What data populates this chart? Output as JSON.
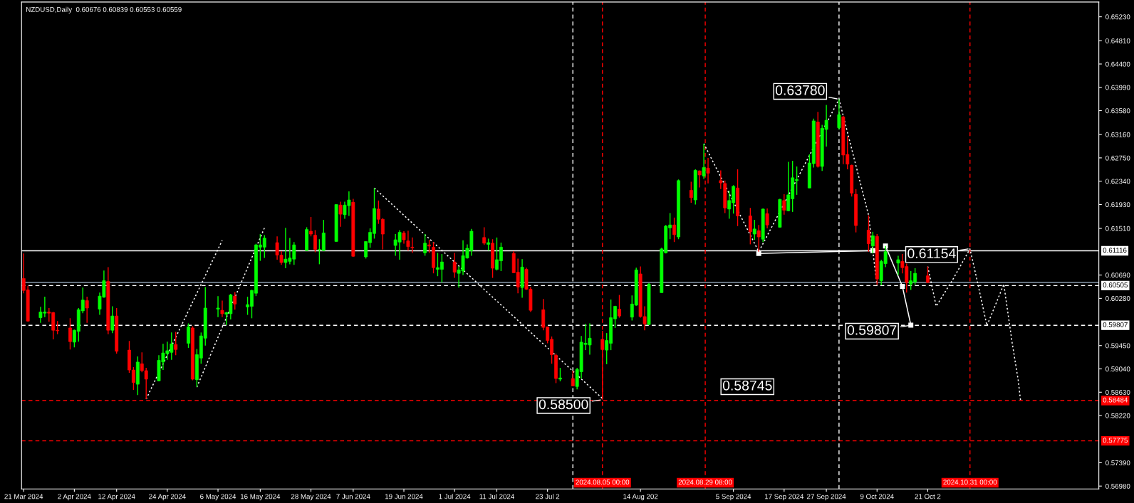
{
  "chart_data": {
    "type": "candlestick",
    "title": "NZDUSD,Daily  0.60676 0.60839 0.60553 0.60559",
    "x": [
      "2024-03-21",
      "2024-03-22",
      "2024-03-25",
      "2024-03-26",
      "2024-03-27",
      "2024-03-28",
      "2024-03-29",
      "2024-04-01",
      "2024-04-02",
      "2024-04-03",
      "2024-04-04",
      "2024-04-05",
      "2024-04-08",
      "2024-04-09",
      "2024-04-10",
      "2024-04-11",
      "2024-04-12",
      "2024-04-15",
      "2024-04-16",
      "2024-04-17",
      "2024-04-18",
      "2024-04-19",
      "2024-04-22",
      "2024-04-23",
      "2024-04-24",
      "2024-04-25",
      "2024-04-26",
      "2024-04-29",
      "2024-04-30",
      "2024-05-01",
      "2024-05-02",
      "2024-05-03",
      "2024-05-06",
      "2024-05-07",
      "2024-05-08",
      "2024-05-09",
      "2024-05-10",
      "2024-05-13",
      "2024-05-14",
      "2024-05-15",
      "2024-05-16",
      "2024-05-17",
      "2024-05-20",
      "2024-05-21",
      "2024-05-22",
      "2024-05-23",
      "2024-05-24",
      "2024-05-27",
      "2024-05-28",
      "2024-05-29",
      "2024-05-30",
      "2024-05-31",
      "2024-06-03",
      "2024-06-04",
      "2024-06-05",
      "2024-06-06",
      "2024-06-07",
      "2024-06-10",
      "2024-06-11",
      "2024-06-12",
      "2024-06-13",
      "2024-06-14",
      "2024-06-17",
      "2024-06-18",
      "2024-06-19",
      "2024-06-20",
      "2024-06-21",
      "2024-06-24",
      "2024-06-25",
      "2024-06-26",
      "2024-06-27",
      "2024-06-28",
      "2024-07-01",
      "2024-07-02",
      "2024-07-03",
      "2024-07-04",
      "2024-07-05",
      "2024-07-08",
      "2024-07-09",
      "2024-07-10",
      "2024-07-11",
      "2024-07-12",
      "2024-07-15",
      "2024-07-16",
      "2024-07-17",
      "2024-07-18",
      "2024-07-19",
      "2024-07-22",
      "2024-07-23",
      "2024-07-24",
      "2024-07-25",
      "2024-07-26",
      "2024-07-29",
      "2024-07-30",
      "2024-07-31",
      "2024-08-01",
      "2024-08-02",
      "2024-08-05",
      "2024-08-06",
      "2024-08-07",
      "2024-08-08",
      "2024-08-09",
      "2024-08-12",
      "2024-08-13",
      "2024-08-14",
      "2024-08-15",
      "2024-08-16",
      "2024-08-19",
      "2024-08-20",
      "2024-08-21",
      "2024-08-22",
      "2024-08-23",
      "2024-08-26",
      "2024-08-27",
      "2024-08-28",
      "2024-08-29",
      "2024-08-30",
      "2024-09-02",
      "2024-09-03",
      "2024-09-04",
      "2024-09-05",
      "2024-09-06",
      "2024-09-09",
      "2024-09-10",
      "2024-09-11",
      "2024-09-12",
      "2024-09-13",
      "2024-09-16",
      "2024-09-17",
      "2024-09-18",
      "2024-09-19",
      "2024-09-20",
      "2024-09-23",
      "2024-09-24",
      "2024-09-25",
      "2024-09-26",
      "2024-09-27",
      "2024-09-30",
      "2024-10-01",
      "2024-10-02",
      "2024-10-03",
      "2024-10-04",
      "2024-10-07",
      "2024-10-08",
      "2024-10-09",
      "2024-10-10",
      "2024-10-11",
      "2024-10-14",
      "2024-10-15",
      "2024-10-16",
      "2024-10-17",
      "2024-10-18",
      "2024-10-21"
    ],
    "ohlc": [
      [
        0.6063,
        0.6107,
        0.6037,
        0.6042
      ],
      [
        0.6043,
        0.605,
        0.5987,
        0.5988
      ],
      [
        0.5994,
        0.6013,
        0.5985,
        0.6004
      ],
      [
        0.6002,
        0.6031,
        0.5995,
        0.6004
      ],
      [
        0.6004,
        0.6011,
        0.5987,
        0.6002
      ],
      [
        0.6003,
        0.6004,
        0.5956,
        0.5972
      ],
      [
        0.5972,
        0.5988,
        0.5965,
        0.5971
      ],
      [
        0.5976,
        0.5993,
        0.5938,
        0.5952
      ],
      [
        0.5951,
        0.5973,
        0.5942,
        0.5972
      ],
      [
        0.597,
        0.6011,
        0.5952,
        0.6008
      ],
      [
        0.6006,
        0.6047,
        0.6002,
        0.6025
      ],
      [
        0.6024,
        0.6031,
        0.5985,
        0.6011
      ],
      [
        0.6009,
        0.6038,
        0.5999,
        0.6032
      ],
      [
        0.603,
        0.6077,
        0.6029,
        0.6059
      ],
      [
        0.6058,
        0.6083,
        0.5965,
        0.5972
      ],
      [
        0.5972,
        0.6014,
        0.5967,
        0.5997
      ],
      [
        0.5997,
        0.6011,
        0.5931,
        0.5935
      ],
      [
        0.5937,
        0.5953,
        0.5897,
        0.5902
      ],
      [
        0.5902,
        0.5907,
        0.5867,
        0.588
      ],
      [
        0.5877,
        0.5926,
        0.5858,
        0.5916
      ],
      [
        0.5913,
        0.5933,
        0.5898,
        0.5901
      ],
      [
        0.5901,
        0.5906,
        0.5851,
        0.5886
      ],
      [
        0.5883,
        0.5928,
        0.5882,
        0.5919
      ],
      [
        0.5916,
        0.5948,
        0.5902,
        0.5932
      ],
      [
        0.5931,
        0.5952,
        0.592,
        0.5936
      ],
      [
        0.5933,
        0.5968,
        0.592,
        0.5948
      ],
      [
        0.5947,
        0.5969,
        0.5928,
        0.5938
      ],
      [
        0.5949,
        0.5984,
        0.5941,
        0.5978
      ],
      [
        0.5976,
        0.5979,
        0.5884,
        0.5886
      ],
      [
        0.5885,
        0.5939,
        0.5872,
        0.5929
      ],
      [
        0.5923,
        0.5968,
        0.5913,
        0.5962
      ],
      [
        0.5958,
        0.6048,
        0.5945,
        0.6011
      ],
      [
        0.6009,
        0.6032,
        0.5995,
        0.6011
      ],
      [
        0.6007,
        0.6024,
        0.5995,
        0.6001
      ],
      [
        0.6,
        0.6004,
        0.5981,
        0.6003
      ],
      [
        0.6001,
        0.6036,
        0.5991,
        0.6034
      ],
      [
        0.6032,
        0.6039,
        0.6008,
        0.6018
      ],
      [
        0.6013,
        0.6031,
        0.5999,
        0.6017
      ],
      [
        0.6014,
        0.6043,
        0.5993,
        0.6042
      ],
      [
        0.6037,
        0.6124,
        0.6032,
        0.6122
      ],
      [
        0.6118,
        0.6141,
        0.6094,
        0.6122
      ],
      [
        0.6118,
        0.6139,
        0.6099,
        0.6134
      ],
      [
        0.6126,
        0.6137,
        0.6096,
        0.6104
      ],
      [
        0.6104,
        0.6111,
        0.6087,
        0.6091
      ],
      [
        0.6091,
        0.6152,
        0.6081,
        0.6097
      ],
      [
        0.6093,
        0.6134,
        0.6088,
        0.6099
      ],
      [
        0.6097,
        0.6127,
        0.6087,
        0.6122
      ],
      [
        0.6112,
        0.6153,
        0.6112,
        0.6149
      ],
      [
        0.6146,
        0.6171,
        0.6137,
        0.6141
      ],
      [
        0.6139,
        0.6148,
        0.6109,
        0.6114
      ],
      [
        0.6113,
        0.6132,
        0.6088,
        0.6114
      ],
      [
        0.6112,
        0.6166,
        0.6112,
        0.6143
      ],
      [
        0.6128,
        0.6193,
        0.6128,
        0.6193
      ],
      [
        0.6192,
        0.6198,
        0.6154,
        0.6176
      ],
      [
        0.6175,
        0.6198,
        0.6168,
        0.6192
      ],
      [
        0.6191,
        0.6216,
        0.6173,
        0.6201
      ],
      [
        0.6197,
        0.6203,
        0.6101,
        0.6102
      ],
      [
        0.6101,
        0.6128,
        0.6098,
        0.6128
      ],
      [
        0.6126,
        0.6151,
        0.6117,
        0.6144
      ],
      [
        0.6142,
        0.6222,
        0.6133,
        0.6186
      ],
      [
        0.6185,
        0.62,
        0.6159,
        0.6167
      ],
      [
        0.6167,
        0.6169,
        0.6114,
        0.6141
      ],
      [
        0.6121,
        0.6141,
        0.6103,
        0.6131
      ],
      [
        0.6127,
        0.6148,
        0.6096,
        0.6144
      ],
      [
        0.6143,
        0.6146,
        0.6124,
        0.6131
      ],
      [
        0.6129,
        0.6147,
        0.6112,
        0.6119
      ],
      [
        0.6118,
        0.6135,
        0.6108,
        0.6117
      ],
      [
        0.6108,
        0.6141,
        0.6103,
        0.6125
      ],
      [
        0.6122,
        0.6131,
        0.6108,
        0.612
      ],
      [
        0.6118,
        0.6127,
        0.6072,
        0.6082
      ],
      [
        0.6079,
        0.6108,
        0.6067,
        0.6082
      ],
      [
        0.6079,
        0.6106,
        0.6056,
        0.6092
      ],
      [
        0.6092,
        0.6108,
        0.6064,
        0.6074
      ],
      [
        0.6072,
        0.6084,
        0.6047,
        0.6078
      ],
      [
        0.6076,
        0.613,
        0.6069,
        0.6103
      ],
      [
        0.6099,
        0.6123,
        0.6098,
        0.6116
      ],
      [
        0.6112,
        0.615,
        0.6103,
        0.6146
      ],
      [
        0.6135,
        0.6153,
        0.6122,
        0.6125
      ],
      [
        0.6123,
        0.6133,
        0.6112,
        0.6126
      ],
      [
        0.6125,
        0.6132,
        0.6064,
        0.6081
      ],
      [
        0.6079,
        0.6135,
        0.6077,
        0.6096
      ],
      [
        0.6094,
        0.6126,
        0.6076,
        0.6118
      ],
      [
        0.6107,
        0.6111,
        0.6073,
        0.6073
      ],
      [
        0.6074,
        0.6098,
        0.6037,
        0.6048
      ],
      [
        0.6047,
        0.6097,
        0.6029,
        0.6083
      ],
      [
        0.6079,
        0.6082,
        0.6043,
        0.6044
      ],
      [
        0.6044,
        0.6048,
        0.6004,
        0.6007
      ],
      [
        0.6008,
        0.6027,
        0.5972,
        0.5977
      ],
      [
        0.5978,
        0.5978,
        0.5949,
        0.5954
      ],
      [
        0.5956,
        0.5961,
        0.5913,
        0.5929
      ],
      [
        0.5928,
        0.5931,
        0.5879,
        0.5887
      ],
      [
        0.5886,
        0.5906,
        0.5882,
        0.5888
      ],
      [
        0.5887,
        0.5901,
        0.5874,
        0.5874
      ],
      [
        0.5873,
        0.5906,
        0.5868,
        0.5903
      ],
      [
        0.5899,
        0.5962,
        0.5887,
        0.5951
      ],
      [
        0.5947,
        0.5983,
        0.5937,
        0.5949
      ],
      [
        0.5946,
        0.5984,
        0.5929,
        0.5958
      ],
      [
        0.5956,
        0.5971,
        0.585,
        0.5938
      ],
      [
        0.5937,
        0.5967,
        0.5912,
        0.5954
      ],
      [
        0.5949,
        0.6026,
        0.5937,
        0.5994
      ],
      [
        0.5992,
        0.6015,
        0.5976,
        0.6014
      ],
      [
        0.6009,
        0.6034,
        0.5994,
        0.5997
      ],
      [
        0.5995,
        0.6033,
        0.5989,
        0.6018
      ],
      [
        0.6016,
        0.6082,
        0.6015,
        0.6078
      ],
      [
        0.6071,
        0.6084,
        0.5994,
        0.5996
      ],
      [
        0.5996,
        0.6014,
        0.5972,
        0.5983
      ],
      [
        0.5982,
        0.6055,
        0.5981,
        0.6053
      ],
      [
        0.6038,
        0.6117,
        0.6038,
        0.6115
      ],
      [
        0.6108,
        0.6157,
        0.6107,
        0.6155
      ],
      [
        0.6152,
        0.6178,
        0.6132,
        0.6157
      ],
      [
        0.6157,
        0.617,
        0.6127,
        0.614
      ],
      [
        0.6136,
        0.6237,
        0.6132,
        0.6235
      ],
      [
        0.6218,
        0.6233,
        0.6196,
        0.6205
      ],
      [
        0.6201,
        0.6255,
        0.6193,
        0.6253
      ],
      [
        0.6252,
        0.6253,
        0.6223,
        0.6245
      ],
      [
        0.6243,
        0.63,
        0.6238,
        0.6258
      ],
      [
        0.6257,
        0.6275,
        0.623,
        0.6248
      ],
      [
        0.6235,
        0.6253,
        0.622,
        0.6231
      ],
      [
        0.623,
        0.6235,
        0.6178,
        0.6187
      ],
      [
        0.6185,
        0.6217,
        0.6168,
        0.62
      ],
      [
        0.6196,
        0.6227,
        0.6177,
        0.6225
      ],
      [
        0.6222,
        0.6255,
        0.6155,
        0.6173
      ],
      [
        0.6173,
        0.6187,
        0.6123,
        0.6145
      ],
      [
        0.6141,
        0.6166,
        0.6131,
        0.615
      ],
      [
        0.6147,
        0.6157,
        0.611,
        0.6136
      ],
      [
        0.6132,
        0.6186,
        0.6127,
        0.6185
      ],
      [
        0.6177,
        0.6186,
        0.6151,
        0.6157
      ],
      [
        0.6153,
        0.6203,
        0.6153,
        0.6202
      ],
      [
        0.62,
        0.6211,
        0.6175,
        0.6183
      ],
      [
        0.6182,
        0.6268,
        0.6181,
        0.621
      ],
      [
        0.6203,
        0.627,
        0.618,
        0.624
      ],
      [
        0.6235,
        0.626,
        0.621,
        0.6237
      ],
      [
        0.6222,
        0.6281,
        0.6222,
        0.6266
      ],
      [
        0.6265,
        0.6344,
        0.6258,
        0.634
      ],
      [
        0.6338,
        0.6356,
        0.6258,
        0.626
      ],
      [
        0.626,
        0.6333,
        0.6252,
        0.6327
      ],
      [
        0.6325,
        0.6368,
        0.6295,
        0.6341
      ],
      [
        0.6328,
        0.6378,
        0.6325,
        0.6351
      ],
      [
        0.6347,
        0.6349,
        0.6264,
        0.628
      ],
      [
        0.6281,
        0.6313,
        0.6255,
        0.6264
      ],
      [
        0.6262,
        0.6263,
        0.6207,
        0.6213
      ],
      [
        0.6211,
        0.622,
        0.6144,
        0.6156
      ],
      [
        0.6148,
        0.6174,
        0.611,
        0.6124
      ],
      [
        0.612,
        0.6145,
        0.6107,
        0.6138
      ],
      [
        0.6137,
        0.6141,
        0.6052,
        0.6062
      ],
      [
        0.6059,
        0.6096,
        0.6051,
        0.6093
      ],
      [
        0.6089,
        0.612,
        0.6083,
        0.611
      ],
      [
        0.609,
        0.6103,
        0.6069,
        0.6096
      ],
      [
        0.6093,
        0.6106,
        0.6072,
        0.6082
      ],
      [
        0.6084,
        0.6089,
        0.6038,
        0.6056
      ],
      [
        0.6053,
        0.6076,
        0.6043,
        0.6059
      ],
      [
        0.6057,
        0.6081,
        0.6052,
        0.6072
      ],
      [
        0.60676,
        0.60839,
        0.60553,
        0.60559
      ]
    ],
    "colors": [
      "#ff0000",
      "#ff0000",
      "#00ff00",
      "#00ff00",
      "#ff0000",
      "#ff0000",
      "#ff0000",
      "#ff0000",
      "#00ff00",
      "#00ff00",
      "#00ff00",
      "#ff0000",
      "#00ff00",
      "#00ff00",
      "#ff0000",
      "#00ff00",
      "#ff0000",
      "#ff0000",
      "#ff0000",
      "#00ff00",
      "#ff0000",
      "#ff0000",
      "#00ff00",
      "#00ff00",
      "#00ff00",
      "#00ff00",
      "#ff0000",
      "#00ff00",
      "#ff0000",
      "#00ff00",
      "#00ff00",
      "#00ff00",
      "#00ff00",
      "#ff0000",
      "#00ff00",
      "#00ff00",
      "#ff0000",
      "#00ff00",
      "#00ff00",
      "#00ff00",
      "#00ff00",
      "#00ff00",
      "#ff0000",
      "#ff0000",
      "#00ff00",
      "#00ff00",
      "#00ff00",
      "#00ff00",
      "#ff0000",
      "#ff0000",
      "#00ff00",
      "#00ff00",
      "#00ff00",
      "#ff0000",
      "#00ff00",
      "#00ff00",
      "#ff0000",
      "#00ff00",
      "#00ff00",
      "#00ff00",
      "#ff0000",
      "#ff0000",
      "#00ff00",
      "#00ff00",
      "#ff0000",
      "#ff0000",
      "#ff0000",
      "#00ff00",
      "#ff0000",
      "#ff0000",
      "#00ff00",
      "#00ff00",
      "#ff0000",
      "#00ff00",
      "#00ff00",
      "#00ff00",
      "#00ff00",
      "#ff0000",
      "#00ff00",
      "#ff0000",
      "#00ff00",
      "#00ff00",
      "#ff0000",
      "#ff0000",
      "#00ff00",
      "#ff0000",
      "#ff0000",
      "#ff0000",
      "#ff0000",
      "#ff0000",
      "#ff0000",
      "#00ff00",
      "#ff0000",
      "#00ff00",
      "#00ff00",
      "#00ff00",
      "#00ff00",
      "#ff0000",
      "#00ff00",
      "#00ff00",
      "#00ff00",
      "#ff0000",
      "#00ff00",
      "#00ff00",
      "#ff0000",
      "#ff0000",
      "#00ff00",
      "#00ff00",
      "#00ff00",
      "#00ff00",
      "#ff0000",
      "#00ff00",
      "#ff0000",
      "#00ff00",
      "#ff0000",
      "#00ff00",
      "#ff0000",
      "#ff0000",
      "#ff0000",
      "#00ff00",
      "#00ff00",
      "#ff0000",
      "#ff0000",
      "#00ff00",
      "#ff0000",
      "#00ff00",
      "#ff0000",
      "#00ff00",
      "#ff0000",
      "#00ff00",
      "#00ff00",
      "#00ff00",
      "#00ff00",
      "#00ff00",
      "#ff0000",
      "#00ff00",
      "#00ff00",
      "#00ff00",
      "#ff0000",
      "#ff0000",
      "#ff0000",
      "#ff0000",
      "#ff0000",
      "#00ff00",
      "#ff0000",
      "#00ff00",
      "#00ff00",
      "#00ff00",
      "#ff0000",
      "#ff0000",
      "#00ff00",
      "#00ff00",
      "#ff0000"
    ],
    "series": [
      {
        "type": "line",
        "color": "#ffffff",
        "line_style": "dotted",
        "marker": "none",
        "x": [
          "2024-04-19",
          "2024-05-07"
        ],
        "values": [
          0.5851,
          0.613
        ]
      },
      {
        "type": "line",
        "color": "#ffffff",
        "line_style": "dotted",
        "marker": "none",
        "x": [
          "2024-05-01",
          "2024-05-17"
        ],
        "values": [
          0.5872,
          0.6152
        ]
      },
      {
        "type": "line",
        "color": "#ffffff",
        "line_style": "dotted",
        "marker": "none",
        "x": [
          "2024-06-12",
          "2024-08-05"
        ],
        "values": [
          0.6222,
          0.5852
        ]
      },
      {
        "type": "line",
        "color": "#ffffff",
        "line_style": "dotted",
        "marker": "none",
        "x": [
          "2024-08-29",
          "2024-09-11",
          "2024-09-30",
          "2024-10-07",
          "2024-10-08",
          "2024-10-09"
        ],
        "values": [
          0.63,
          0.611,
          0.6378,
          0.6174,
          0.6111,
          0.605
        ]
      },
      {
        "type": "line",
        "color": "#ffffff",
        "line_style": "solid",
        "marker": "square",
        "x": [
          "2024-09-11",
          "2024-10-08"
        ],
        "values": [
          0.6107,
          0.6112
        ]
      },
      {
        "type": "line",
        "color": "#ffffff",
        "line_style": "solid",
        "marker": "square",
        "x": [
          "2024-10-11",
          "2024-10-15",
          "2024-10-17"
        ],
        "values": [
          0.612,
          0.6049,
          0.5981
        ]
      },
      {
        "type": "line",
        "color": "#ffffff",
        "line_style": "dotted",
        "marker": "none",
        "x": [
          "2024-10-21",
          "2024-10-22",
          "2024-10-23",
          "2024-10-27",
          "2024-10-31",
          "2024-11-02",
          "2024-11-04",
          "2024-11-06",
          "2024-11-08",
          "2024-11-10",
          "2024-11-11T10:00",
          "2024-11-12"
        ],
        "values": [
          0.6084,
          0.6049,
          0.6014,
          0.6062,
          0.6115,
          0.6049,
          0.598,
          0.6016,
          0.6053,
          0.5949,
          0.5884,
          0.5846
        ]
      }
    ],
    "ref_lines": [
      {
        "axis": "y",
        "value": 0.61116,
        "label": "0.61116",
        "color": "#ffffff",
        "line_style": "solid"
      },
      {
        "axis": "y",
        "value": 0.60559,
        "label": null,
        "color": "#8899aa",
        "line_style": "solid"
      },
      {
        "axis": "y",
        "value": 0.60505,
        "label": "0.60505",
        "color": "#ffffff",
        "line_style": "dashed"
      },
      {
        "axis": "y",
        "value": 0.59807,
        "label": "0.59807",
        "color": "#ffffff",
        "line_style": "dashed"
      },
      {
        "axis": "y",
        "value": 0.58484,
        "label": "0.58484",
        "color": "#ff0000",
        "line_style": "dashed"
      },
      {
        "axis": "y",
        "value": 0.57775,
        "label": "0.57775",
        "color": "#ff0000",
        "line_style": "dashed"
      },
      {
        "axis": "x",
        "value": "2024-07-29",
        "label": null,
        "color": "#ffffff",
        "line_style": "dashed"
      },
      {
        "axis": "x",
        "value": "2024-08-05T00:00",
        "label": "2024.08.05 00:00",
        "color": "#ff0000",
        "line_style": "dashed"
      },
      {
        "axis": "x",
        "value": "2024-08-29T08:00",
        "label": "2024.08.29 08:00",
        "color": "#ff0000",
        "line_style": "dashed"
      },
      {
        "axis": "x",
        "value": "2024-09-30",
        "label": null,
        "color": "#ffffff",
        "line_style": "dashed"
      },
      {
        "axis": "x",
        "value": "2024-10-31T00:00",
        "label": "2024.10.31 00:00",
        "color": "#ff0000",
        "line_style": "dashed"
      }
    ],
    "annotations": [
      {
        "text": "0.63780",
        "x": "2024-09-30",
        "y": 0.6378
      },
      {
        "text": "0.61154",
        "x": "2024-10-31",
        "y": 0.61154
      },
      {
        "text": "0.59807",
        "x": "2024-10-17",
        "y": 0.59807
      },
      "0.58745",
      {
        "text": "0.58500",
        "x": "2024-08-05",
        "y": 0.585
      }
    ],
    "xlim": [
      "2024-03-20T12:00",
      "2024-11-30T12:00"
    ],
    "ylim": [
      0.5693,
      0.6549
    ],
    "xticks": [
      {
        "value": "2024-03-21",
        "label": "21 Mar 2024"
      },
      {
        "value": "2024-04-02",
        "label": "2 Apr 2024"
      },
      {
        "value": "2024-04-12",
        "label": "12 Apr 2024"
      },
      {
        "value": "2024-04-24",
        "label": "24 Apr 2024"
      },
      {
        "value": "2024-05-06",
        "label": "6 May 2024"
      },
      {
        "value": "2024-05-16",
        "label": "16 May 2024"
      },
      {
        "value": "2024-05-28",
        "label": "28 May 2024"
      },
      {
        "value": "2024-06-07",
        "label": "7 Jun 2024"
      },
      {
        "value": "2024-06-19",
        "label": "19 Jun 2024"
      },
      {
        "value": "2024-07-01",
        "label": "1 Jul 2024"
      },
      {
        "value": "2024-07-11",
        "label": "11 Jul 2024"
      },
      {
        "value": "2024-07-23",
        "label": "23 Jul 2"
      },
      {
        "value": "2024-08-14",
        "label": "14 Aug 202"
      },
      {
        "value": "2024-09-05",
        "label": "5 Sep 2024"
      },
      {
        "value": "2024-09-17",
        "label": "17 Sep 2024"
      },
      {
        "value": "2024-09-27",
        "label": "27 Sep 2024"
      },
      {
        "value": "2024-10-09",
        "label": "9 Oct 2024"
      },
      {
        "value": "2024-10-21",
        "label": "21 Oct 2"
      }
    ],
    "yticks": [
      {
        "value": 0.6523,
        "label": "0.65230"
      },
      {
        "value": 0.6481,
        "label": "0.64810"
      },
      {
        "value": 0.644,
        "label": "0.64400"
      },
      {
        "value": 0.6399,
        "label": "0.63990"
      },
      {
        "value": 0.6358,
        "label": "0.63580"
      },
      {
        "value": 0.6316,
        "label": "0.63160"
      },
      {
        "value": 0.6275,
        "label": "0.62750"
      },
      {
        "value": 0.6234,
        "label": "0.62340"
      },
      {
        "value": 0.6193,
        "label": "0.61930"
      },
      {
        "value": 0.6151,
        "label": "0.61510"
      },
      {
        "value": 0.6069,
        "label": "0.60690"
      },
      {
        "value": 0.6028,
        "label": "0.60280"
      },
      {
        "value": 0.5945,
        "label": "0.59450"
      },
      {
        "value": 0.5904,
        "label": "0.59040"
      },
      {
        "value": 0.5863,
        "label": "0.58630"
      },
      {
        "value": 0.5822,
        "label": "0.58220"
      },
      {
        "value": 0.5739,
        "label": "0.57390"
      },
      {
        "value": 0.5698,
        "label": "0.56980"
      }
    ],
    "grid": false
  }
}
